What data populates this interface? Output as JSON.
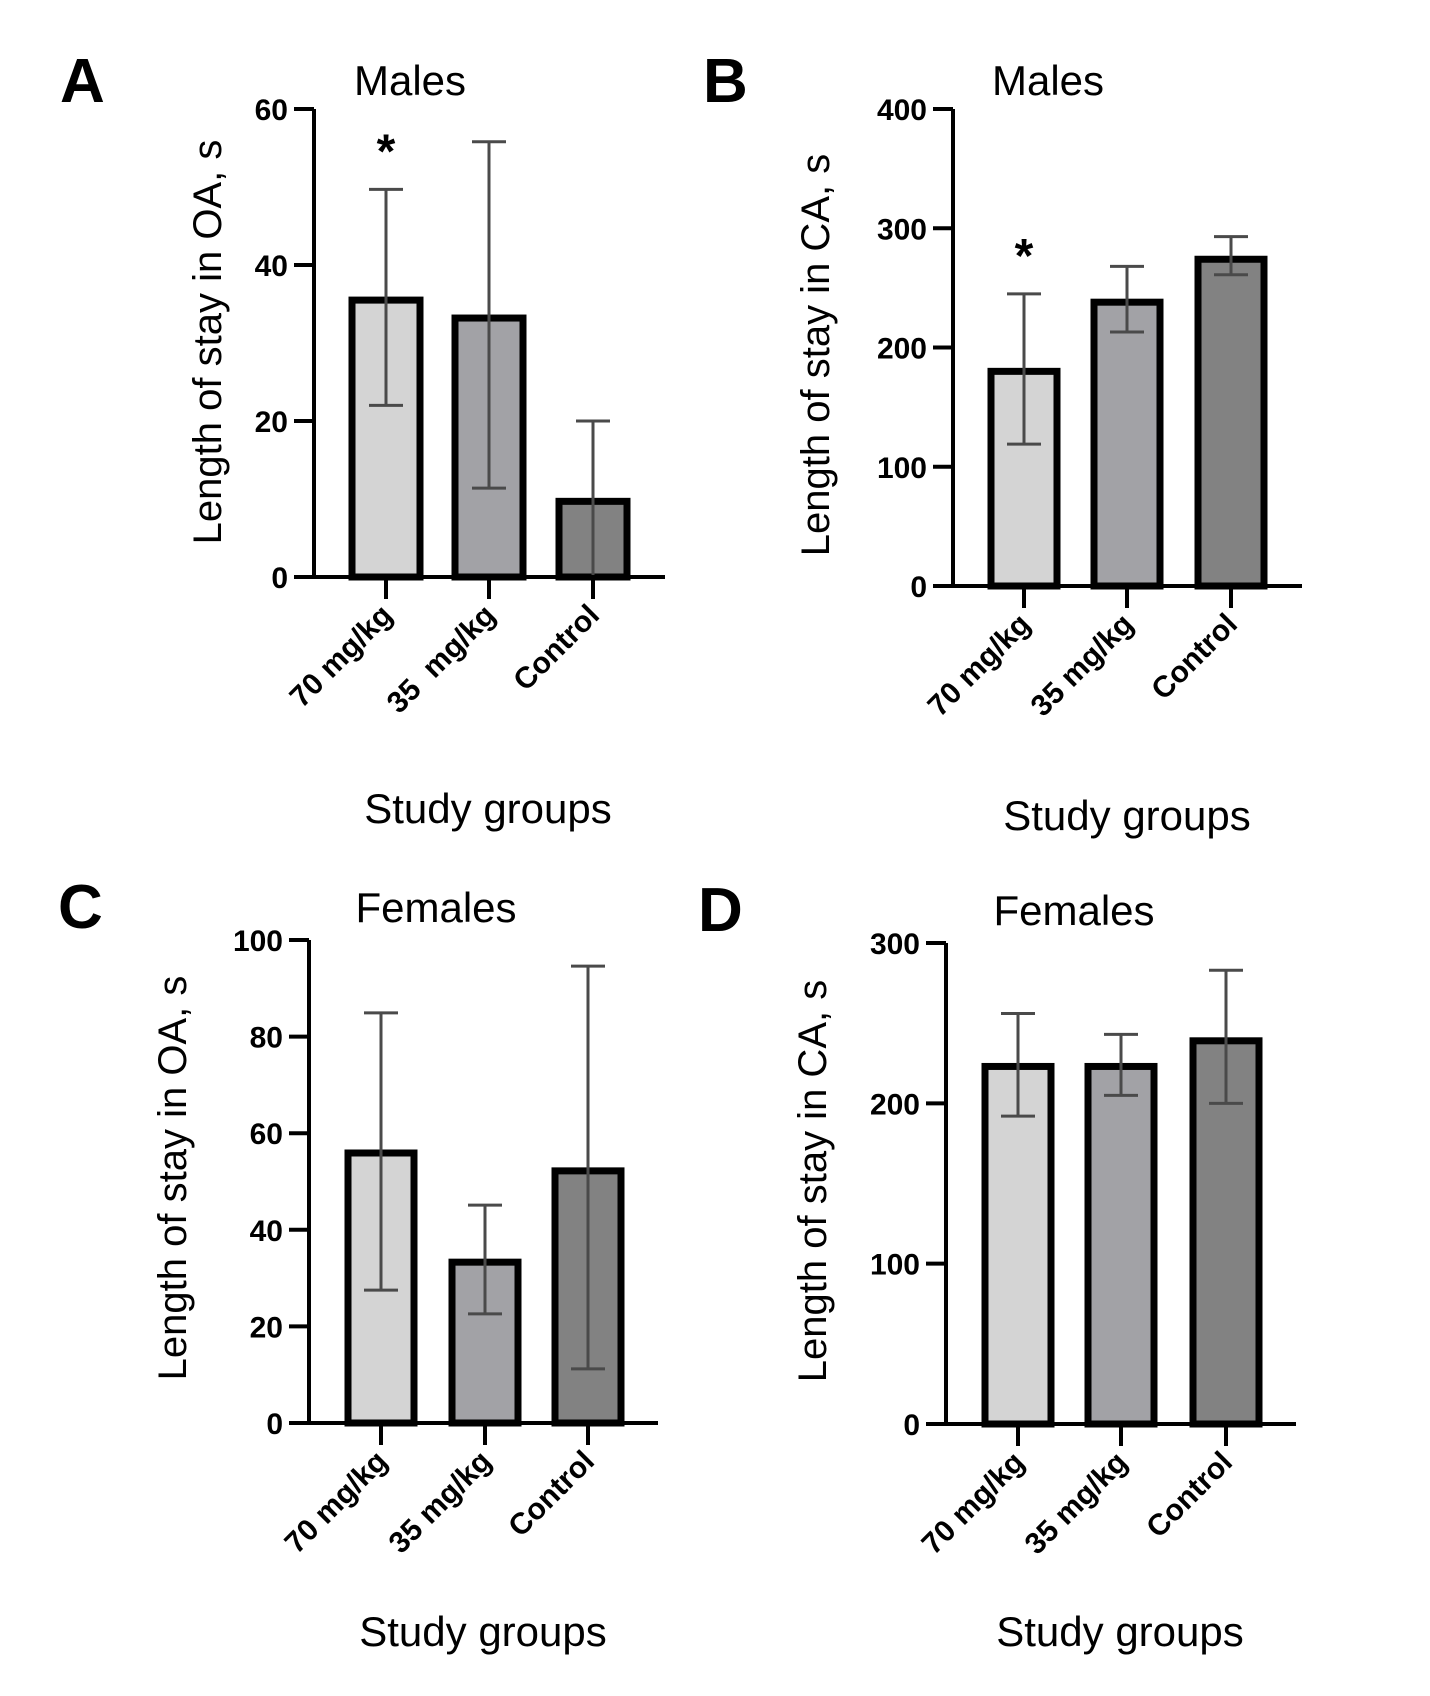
{
  "colors": {
    "bar_fills": [
      "#d4d4d4",
      "#a2a2a6",
      "#828282"
    ],
    "bar_border": "#000000",
    "error_bar": "#4a4a4a"
  },
  "chart_data": [
    {
      "type": "bar",
      "panel": "A",
      "title": "Males",
      "xlabel": "Study groups",
      "ylabel": "Length of stay in OA, s",
      "categories": [
        "70 mg/kg",
        "35  mg/kg",
        "Control"
      ],
      "values": [
        35.5,
        33.2,
        9.7
      ],
      "error_upper": [
        49.7,
        55.8,
        20.0
      ],
      "error_lower": [
        22.0,
        11.4,
        null
      ],
      "significance": [
        "*",
        "",
        ""
      ],
      "ylim": [
        0,
        60
      ],
      "yticks": [
        0,
        20,
        40,
        60
      ],
      "ytick_labels": [
        "0",
        "20",
        "40",
        "60"
      ],
      "grid": false
    },
    {
      "type": "bar",
      "panel": "B",
      "title": "Males",
      "xlabel": "Study groups",
      "ylabel": "Length of stay in CA, s",
      "categories": [
        "70 mg/kg",
        "35 mg/kg",
        "Control"
      ],
      "values": [
        180,
        238,
        274
      ],
      "error_upper": [
        245,
        268,
        293
      ],
      "error_lower": [
        119,
        213,
        261
      ],
      "significance": [
        "*",
        "",
        ""
      ],
      "ylim": [
        0,
        400
      ],
      "yticks": [
        0,
        100,
        200,
        300,
        400
      ],
      "ytick_labels": [
        "0",
        "100",
        "200",
        "300",
        "400"
      ],
      "grid": false
    },
    {
      "type": "bar",
      "panel": "C",
      "title": "Females",
      "xlabel": "Study groups",
      "ylabel": "Length of stay in OA, s",
      "categories": [
        "70 mg/kg",
        "35 mg/kg",
        "Control"
      ],
      "values": [
        55.9,
        33.3,
        52.2
      ],
      "error_upper": [
        84.9,
        45.1,
        94.6
      ],
      "error_lower": [
        27.5,
        22.6,
        11.2
      ],
      "significance": [
        "",
        "",
        ""
      ],
      "ylim": [
        0,
        100
      ],
      "yticks": [
        0,
        20,
        40,
        60,
        80,
        100
      ],
      "ytick_labels": [
        "0",
        "20",
        "40",
        "60",
        "80",
        "100"
      ],
      "grid": false
    },
    {
      "type": "bar",
      "panel": "D",
      "title": "Females",
      "xlabel": "Study groups",
      "ylabel": "Length of stay in CA, s",
      "categories": [
        "70 mg/kg",
        "35 mg/kg",
        "Control"
      ],
      "values": [
        223,
        223,
        239
      ],
      "error_upper": [
        256,
        243,
        283
      ],
      "error_lower": [
        192,
        205,
        200
      ],
      "significance": [
        "",
        "",
        ""
      ],
      "ylim": [
        0,
        300
      ],
      "yticks": [
        0,
        100,
        200,
        300
      ],
      "ytick_labels": [
        "0",
        "100",
        "200",
        "300"
      ],
      "grid": false
    }
  ]
}
